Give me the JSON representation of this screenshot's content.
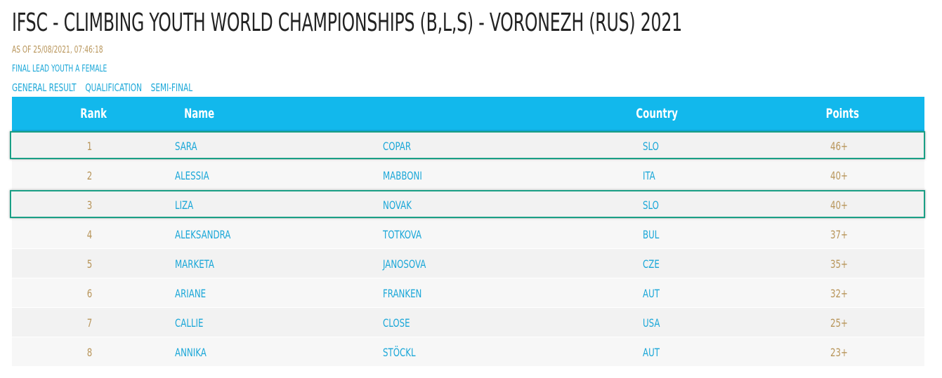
{
  "page": {
    "title": "IFSC - CLIMBING YOUTH WORLD CHAMPIONSHIPS (B,L,S) - VORONEZH (RUS) 2021",
    "as_of": "AS OF 25/08/2021, 07:46:18",
    "event": "FINAL LEAD YOUTH A FEMALE",
    "tabs": [
      "GENERAL RESULT",
      "QUALIFICATION",
      "SEMI-FINAL"
    ]
  },
  "table": {
    "headers": {
      "rank": "Rank",
      "name": "Name",
      "country": "Country",
      "points": "Points"
    },
    "rows": [
      {
        "rank": "1",
        "first": "SARA",
        "last": "COPAR",
        "country": "SLO",
        "points": "46+"
      },
      {
        "rank": "2",
        "first": "ALESSIA",
        "last": "MABBONI",
        "country": "ITA",
        "points": "40+"
      },
      {
        "rank": "3",
        "first": "LIZA",
        "last": "NOVAK",
        "country": "SLO",
        "points": "40+"
      },
      {
        "rank": "4",
        "first": "ALEKSANDRA",
        "last": "TOTKOVA",
        "country": "BUL",
        "points": "37+"
      },
      {
        "rank": "5",
        "first": "MARKETA",
        "last": "JANOSOVA",
        "country": "CZE",
        "points": "35+"
      },
      {
        "rank": "6",
        "first": "ARIANE",
        "last": "FRANKEN",
        "country": "AUT",
        "points": "32+"
      },
      {
        "rank": "7",
        "first": "CALLIE",
        "last": "CLOSE",
        "country": "USA",
        "points": "25+"
      },
      {
        "rank": "8",
        "first": "ANNIKA",
        "last": "STÖCKL",
        "country": "AUT",
        "points": "23+"
      }
    ]
  },
  "colors": {
    "header_bg": "#12b8ec",
    "link": "#1aa7d8",
    "gold": "#b8955a",
    "highlight_border": "#1a9f85"
  }
}
